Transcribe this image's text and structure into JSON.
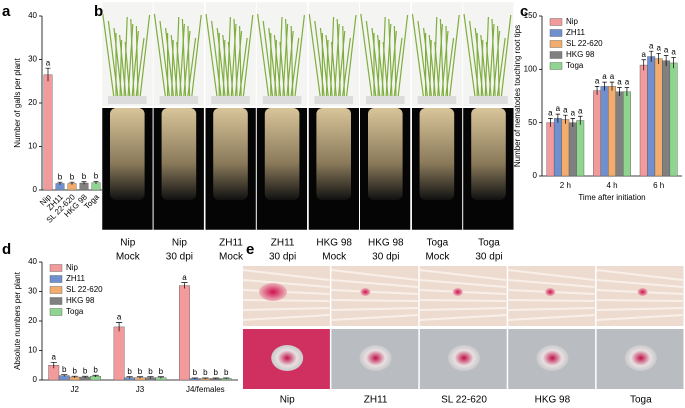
{
  "panel_letters": [
    "a",
    "b",
    "c",
    "d",
    "e"
  ],
  "chart_data": [
    {
      "type": "bar",
      "ylabel": "Number of galls per plant",
      "categories": [
        "Nip",
        "ZH11",
        "SL 22-620",
        "HKG 98",
        "Toga"
      ],
      "values": [
        26.5,
        1.5,
        1.5,
        1.6,
        1.7
      ],
      "errors": [
        1.5,
        0.3,
        0.3,
        0.3,
        0.3
      ],
      "letters": [
        "a",
        "b",
        "b",
        "b",
        "b"
      ],
      "colors": [
        "#f39a9c",
        "#6f8fcf",
        "#f2ad6e",
        "#808080",
        "#8fd48f"
      ],
      "ylim": [
        0,
        40
      ],
      "yticks": [
        0,
        10,
        20,
        30,
        40
      ]
    },
    {
      "type": "grouped_bar",
      "ylabel": "Number of nematodes touching root tips",
      "xlabel": "Time after initiation",
      "categories": [
        "2 h",
        "4 h",
        "6 h"
      ],
      "series": [
        {
          "name": "Nip",
          "color": "#f39a9c",
          "values": [
            50,
            80,
            104
          ],
          "errors": [
            4,
            4,
            5
          ],
          "letters": [
            "a",
            "a",
            "a"
          ]
        },
        {
          "name": "ZH11",
          "color": "#6f8fcf",
          "values": [
            54,
            84,
            112
          ],
          "errors": [
            4,
            4,
            5
          ],
          "letters": [
            "a",
            "a",
            "a"
          ]
        },
        {
          "name": "SL 22-620",
          "color": "#f2ad6e",
          "values": [
            53,
            84,
            110
          ],
          "errors": [
            4,
            4,
            5
          ],
          "letters": [
            "a",
            "a",
            "a"
          ]
        },
        {
          "name": "HKG 98",
          "color": "#808080",
          "values": [
            50,
            79,
            108
          ],
          "errors": [
            4,
            4,
            5
          ],
          "letters": [
            "a",
            "a",
            "a"
          ]
        },
        {
          "name": "Toga",
          "color": "#8fd48f",
          "values": [
            52,
            79,
            106
          ],
          "errors": [
            4,
            4,
            5
          ],
          "letters": [
            "a",
            "a",
            "a"
          ]
        }
      ],
      "ylim": [
        0,
        150
      ],
      "yticks": [
        0,
        50,
        100,
        150
      ]
    },
    {
      "type": "grouped_bar",
      "ylabel": "Absolute numbers per plant",
      "categories": [
        "J2",
        "J3",
        "J4/females"
      ],
      "series": [
        {
          "name": "Nip",
          "color": "#f39a9c",
          "values": [
            5,
            18,
            32
          ],
          "errors": [
            1,
            1.5,
            1
          ],
          "letters": [
            "a",
            "a",
            "a"
          ]
        },
        {
          "name": "ZH11",
          "color": "#6f8fcf",
          "values": [
            1.5,
            0.8,
            0.5
          ],
          "errors": [
            0.3,
            0.3,
            0.2
          ],
          "letters": [
            "b",
            "b",
            "b"
          ]
        },
        {
          "name": "SL 22-620",
          "color": "#f2ad6e",
          "values": [
            1,
            0.8,
            0.5
          ],
          "errors": [
            0.3,
            0.3,
            0.2
          ],
          "letters": [
            "b",
            "b",
            "b"
          ]
        },
        {
          "name": "HKG 98",
          "color": "#808080",
          "values": [
            1,
            0.8,
            0.5
          ],
          "errors": [
            0.3,
            0.3,
            0.2
          ],
          "letters": [
            "b",
            "b",
            "b"
          ]
        },
        {
          "name": "Toga",
          "color": "#8fd48f",
          "values": [
            1.3,
            0.8,
            0.5
          ],
          "errors": [
            0.3,
            0.3,
            0.2
          ],
          "letters": [
            "b",
            "b",
            "b"
          ]
        }
      ],
      "ylim": [
        0,
        40
      ],
      "yticks": [
        0,
        10,
        20,
        30,
        40
      ]
    }
  ],
  "photos_b": [
    {
      "line1": "Nip",
      "line2": "Mock"
    },
    {
      "line1": "Nip",
      "line2": "30 dpi"
    },
    {
      "line1": "ZH11",
      "line2": "Mock"
    },
    {
      "line1": "ZH11",
      "line2": "30 dpi"
    },
    {
      "line1": "HKG 98",
      "line2": "Mock"
    },
    {
      "line1": "HKG 98",
      "line2": "30 dpi"
    },
    {
      "line1": "Toga",
      "line2": "Mock"
    },
    {
      "line1": "Toga",
      "line2": "30 dpi"
    }
  ],
  "photos_e": [
    "Nip",
    "ZH11",
    "SL 22-620",
    "HKG 98",
    "Toga"
  ]
}
